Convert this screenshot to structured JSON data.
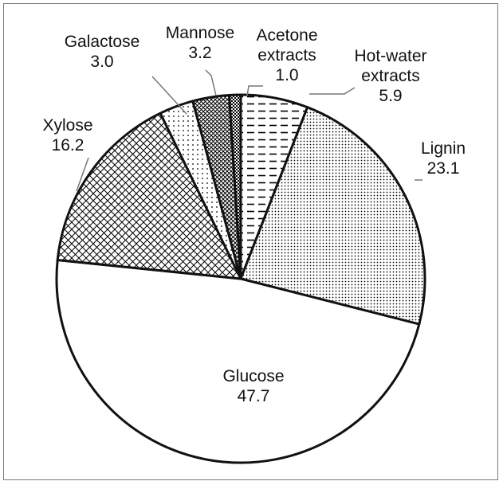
{
  "chart_data": {
    "type": "pie",
    "title": "",
    "slices": [
      {
        "label_lines": [
          "Hot-water",
          "extracts"
        ],
        "value": 5.9,
        "value_text": "5.9",
        "pattern": "dash",
        "color": "#000000"
      },
      {
        "label_lines": [
          "Lignin"
        ],
        "value": 23.1,
        "value_text": "23.1",
        "pattern": "dots",
        "color": "#000000"
      },
      {
        "label_lines": [
          "Glucose"
        ],
        "value": 47.7,
        "value_text": "47.7",
        "pattern": "none",
        "color": "#ffffff"
      },
      {
        "label_lines": [
          "Xylose"
        ],
        "value": 16.2,
        "value_text": "16.2",
        "pattern": "crosshatch",
        "color": "#000000"
      },
      {
        "label_lines": [
          "Galactose"
        ],
        "value": 3.0,
        "value_text": "3.0",
        "pattern": "sparse-dots",
        "color": "#000000"
      },
      {
        "label_lines": [
          "Mannose"
        ],
        "value": 3.2,
        "value_text": "3.2",
        "pattern": "dense-crosshatch",
        "color": "#000000"
      },
      {
        "label_lines": [
          "Acetone",
          "extracts"
        ],
        "value": 1.0,
        "value_text": "1.0",
        "pattern": "checker",
        "color": "#000000"
      }
    ],
    "legend": "none"
  }
}
